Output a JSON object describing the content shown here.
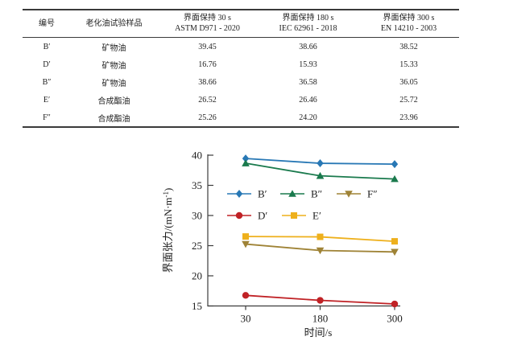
{
  "table": {
    "headers": {
      "col1": "编号",
      "col2": "老化油试验样品",
      "col3_line1": "界面保持 30 s",
      "col3_line2": "ASTM D971 - 2020",
      "col4_line1": "界面保持 180 s",
      "col4_line2": "IEC 62961 - 2018",
      "col5_line1": "界面保持 300 s",
      "col5_line2": "EN 14210 - 2003"
    },
    "rows": [
      {
        "id": "B′",
        "sample": "矿物油",
        "v30": "39.45",
        "v180": "38.66",
        "v300": "38.52"
      },
      {
        "id": "D′",
        "sample": "矿物油",
        "v30": "16.76",
        "v180": "15.93",
        "v300": "15.33"
      },
      {
        "id": "B″",
        "sample": "矿物油",
        "v30": "38.66",
        "v180": "36.58",
        "v300": "36.05"
      },
      {
        "id": "E′",
        "sample": "合成酯油",
        "v30": "26.52",
        "v180": "26.46",
        "v300": "25.72"
      },
      {
        "id": "F″",
        "sample": "合成酯油",
        "v30": "25.26",
        "v180": "24.20",
        "v300": "23.96"
      }
    ]
  },
  "chart_data": {
    "type": "line",
    "x": [
      30,
      180,
      300
    ],
    "x_tick_labels": [
      "30",
      "180",
      "300"
    ],
    "xlabel": "时间/s",
    "ylabel": "界面张力/(mN·m⁻¹)",
    "ylim": [
      15,
      40
    ],
    "yticks": [
      40,
      35,
      30,
      25,
      20,
      15
    ],
    "grid": false,
    "legend_position": "inside-upper-middle",
    "axis_color": "#3c3c3c",
    "series": [
      {
        "name": "B′",
        "marker": "diamond",
        "color": "#2878b5",
        "values": [
          39.45,
          38.66,
          38.52
        ]
      },
      {
        "name": "B″",
        "marker": "triangle-up",
        "color": "#1a7a4d",
        "values": [
          38.66,
          36.58,
          36.05
        ]
      },
      {
        "name": "F″",
        "marker": "triangle-down",
        "color": "#9f8336",
        "values": [
          25.26,
          24.2,
          23.96
        ]
      },
      {
        "name": "D′",
        "marker": "circle",
        "color": "#c02226",
        "values": [
          16.76,
          15.93,
          15.33
        ]
      },
      {
        "name": "E′",
        "marker": "square",
        "color": "#eeb01c",
        "values": [
          26.52,
          26.46,
          25.72
        ]
      }
    ]
  }
}
